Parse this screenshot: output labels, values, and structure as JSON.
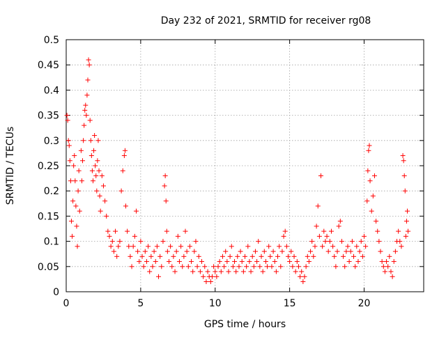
{
  "chart_data": {
    "type": "scatter",
    "title": "Day 232 of 2021, SRMTID for receiver rg08",
    "xlabel": "GPS time / hours",
    "ylabel": "SRMTID / TECUs",
    "xlim": [
      0,
      24
    ],
    "ylim": [
      0,
      0.5
    ],
    "x_ticks": [
      0,
      5,
      10,
      15,
      20
    ],
    "y_ticks": [
      0,
      0.05,
      0.1,
      0.15,
      0.2,
      0.25,
      0.3,
      0.35,
      0.4,
      0.45,
      0.5
    ],
    "x_tick_labels": [
      "0",
      "5",
      "10",
      "15",
      "20"
    ],
    "y_tick_labels": [
      "0",
      "0.05",
      "0.1",
      "0.15",
      "0.2",
      "0.25",
      "0.3",
      "0.35",
      "0.4",
      "0.45",
      "0.5"
    ],
    "grid": true,
    "marker": "plus",
    "color": "#ff0000",
    "series": [
      {
        "name": "SRMTID",
        "points": [
          [
            0.05,
            0.35
          ],
          [
            0.1,
            0.34
          ],
          [
            0.15,
            0.3
          ],
          [
            0.2,
            0.29
          ],
          [
            0.25,
            0.26
          ],
          [
            0.3,
            0.22
          ],
          [
            0.35,
            0.14
          ],
          [
            0.4,
            0.11
          ],
          [
            0.45,
            0.18
          ],
          [
            0.5,
            0.25
          ],
          [
            0.55,
            0.27
          ],
          [
            0.6,
            0.22
          ],
          [
            0.65,
            0.17
          ],
          [
            0.7,
            0.13
          ],
          [
            0.75,
            0.09
          ],
          [
            0.8,
            0.2
          ],
          [
            0.85,
            0.24
          ],
          [
            0.9,
            0.16
          ],
          [
            1.0,
            0.28
          ],
          [
            1.05,
            0.22
          ],
          [
            1.1,
            0.26
          ],
          [
            1.15,
            0.3
          ],
          [
            1.2,
            0.33
          ],
          [
            1.25,
            0.36
          ],
          [
            1.3,
            0.37
          ],
          [
            1.35,
            0.35
          ],
          [
            1.4,
            0.39
          ],
          [
            1.45,
            0.42
          ],
          [
            1.5,
            0.46
          ],
          [
            1.55,
            0.45
          ],
          [
            1.6,
            0.34
          ],
          [
            1.65,
            0.3
          ],
          [
            1.7,
            0.27
          ],
          [
            1.75,
            0.24
          ],
          [
            1.8,
            0.22
          ],
          [
            1.85,
            0.28
          ],
          [
            1.9,
            0.31
          ],
          [
            1.95,
            0.25
          ],
          [
            2.0,
            0.23
          ],
          [
            2.05,
            0.2
          ],
          [
            2.1,
            0.26
          ],
          [
            2.15,
            0.3
          ],
          [
            2.2,
            0.24
          ],
          [
            2.25,
            0.19
          ],
          [
            2.3,
            0.16
          ],
          [
            2.4,
            0.23
          ],
          [
            2.5,
            0.21
          ],
          [
            2.6,
            0.18
          ],
          [
            2.7,
            0.15
          ],
          [
            2.8,
            0.12
          ],
          [
            2.9,
            0.11
          ],
          [
            3.0,
            0.09
          ],
          [
            3.1,
            0.1
          ],
          [
            3.2,
            0.08
          ],
          [
            3.3,
            0.12
          ],
          [
            3.4,
            0.07
          ],
          [
            3.5,
            0.09
          ],
          [
            3.6,
            0.1
          ],
          [
            3.7,
            0.2
          ],
          [
            3.8,
            0.24
          ],
          [
            3.9,
            0.27
          ],
          [
            3.95,
            0.28
          ],
          [
            4.0,
            0.17
          ],
          [
            4.1,
            0.12
          ],
          [
            4.2,
            0.09
          ],
          [
            4.3,
            0.07
          ],
          [
            4.4,
            0.05
          ],
          [
            4.5,
            0.09
          ],
          [
            4.6,
            0.11
          ],
          [
            4.7,
            0.16
          ],
          [
            4.8,
            0.08
          ],
          [
            4.9,
            0.06
          ],
          [
            5.0,
            0.1
          ],
          [
            5.1,
            0.07
          ],
          [
            5.2,
            0.05
          ],
          [
            5.3,
            0.08
          ],
          [
            5.4,
            0.06
          ],
          [
            5.5,
            0.09
          ],
          [
            5.6,
            0.04
          ],
          [
            5.7,
            0.07
          ],
          [
            5.8,
            0.05
          ],
          [
            5.9,
            0.08
          ],
          [
            6.0,
            0.06
          ],
          [
            6.1,
            0.09
          ],
          [
            6.2,
            0.03
          ],
          [
            6.3,
            0.07
          ],
          [
            6.4,
            0.05
          ],
          [
            6.5,
            0.1
          ],
          [
            6.6,
            0.21
          ],
          [
            6.65,
            0.23
          ],
          [
            6.7,
            0.18
          ],
          [
            6.75,
            0.12
          ],
          [
            6.8,
            0.08
          ],
          [
            6.9,
            0.06
          ],
          [
            7.0,
            0.09
          ],
          [
            7.1,
            0.05
          ],
          [
            7.2,
            0.07
          ],
          [
            7.3,
            0.04
          ],
          [
            7.4,
            0.08
          ],
          [
            7.5,
            0.11
          ],
          [
            7.6,
            0.06
          ],
          [
            7.7,
            0.09
          ],
          [
            7.8,
            0.05
          ],
          [
            7.9,
            0.07
          ],
          [
            8.0,
            0.12
          ],
          [
            8.1,
            0.08
          ],
          [
            8.2,
            0.05
          ],
          [
            8.3,
            0.09
          ],
          [
            8.4,
            0.06
          ],
          [
            8.5,
            0.04
          ],
          [
            8.6,
            0.08
          ],
          [
            8.7,
            0.1
          ],
          [
            8.8,
            0.05
          ],
          [
            8.9,
            0.07
          ],
          [
            9.0,
            0.04
          ],
          [
            9.1,
            0.06
          ],
          [
            9.2,
            0.03
          ],
          [
            9.3,
            0.05
          ],
          [
            9.4,
            0.02
          ],
          [
            9.5,
            0.04
          ],
          [
            9.6,
            0.03
          ],
          [
            9.7,
            0.02
          ],
          [
            9.8,
            0.03
          ],
          [
            9.9,
            0.05
          ],
          [
            10.0,
            0.04
          ],
          [
            10.1,
            0.03
          ],
          [
            10.2,
            0.05
          ],
          [
            10.3,
            0.06
          ],
          [
            10.4,
            0.04
          ],
          [
            10.5,
            0.07
          ],
          [
            10.6,
            0.05
          ],
          [
            10.7,
            0.08
          ],
          [
            10.8,
            0.06
          ],
          [
            10.9,
            0.04
          ],
          [
            11.0,
            0.07
          ],
          [
            11.1,
            0.09
          ],
          [
            11.2,
            0.05
          ],
          [
            11.3,
            0.06
          ],
          [
            11.4,
            0.04
          ],
          [
            11.5,
            0.07
          ],
          [
            11.6,
            0.05
          ],
          [
            11.7,
            0.08
          ],
          [
            11.8,
            0.06
          ],
          [
            11.9,
            0.04
          ],
          [
            12.0,
            0.07
          ],
          [
            12.1,
            0.05
          ],
          [
            12.2,
            0.09
          ],
          [
            12.3,
            0.06
          ],
          [
            12.4,
            0.04
          ],
          [
            12.5,
            0.07
          ],
          [
            12.6,
            0.05
          ],
          [
            12.7,
            0.08
          ],
          [
            12.8,
            0.06
          ],
          [
            12.9,
            0.1
          ],
          [
            13.0,
            0.05
          ],
          [
            13.1,
            0.07
          ],
          [
            13.2,
            0.04
          ],
          [
            13.3,
            0.08
          ],
          [
            13.4,
            0.06
          ],
          [
            13.5,
            0.05
          ],
          [
            13.6,
            0.09
          ],
          [
            13.7,
            0.07
          ],
          [
            13.8,
            0.05
          ],
          [
            13.9,
            0.08
          ],
          [
            14.0,
            0.06
          ],
          [
            14.1,
            0.04
          ],
          [
            14.2,
            0.07
          ],
          [
            14.3,
            0.09
          ],
          [
            14.4,
            0.05
          ],
          [
            14.5,
            0.08
          ],
          [
            14.6,
            0.11
          ],
          [
            14.7,
            0.12
          ],
          [
            14.8,
            0.09
          ],
          [
            14.9,
            0.07
          ],
          [
            15.0,
            0.06
          ],
          [
            15.1,
            0.08
          ],
          [
            15.2,
            0.05
          ],
          [
            15.3,
            0.07
          ],
          [
            15.4,
            0.04
          ],
          [
            15.5,
            0.06
          ],
          [
            15.6,
            0.05
          ],
          [
            15.7,
            0.03
          ],
          [
            15.8,
            0.04
          ],
          [
            15.9,
            0.02
          ],
          [
            16.0,
            0.03
          ],
          [
            16.1,
            0.05
          ],
          [
            16.2,
            0.07
          ],
          [
            16.3,
            0.06
          ],
          [
            16.4,
            0.08
          ],
          [
            16.5,
            0.1
          ],
          [
            16.6,
            0.07
          ],
          [
            16.7,
            0.09
          ],
          [
            16.8,
            0.13
          ],
          [
            16.9,
            0.17
          ],
          [
            17.0,
            0.11
          ],
          [
            17.1,
            0.23
          ],
          [
            17.2,
            0.09
          ],
          [
            17.3,
            0.12
          ],
          [
            17.4,
            0.1
          ],
          [
            17.5,
            0.11
          ],
          [
            17.6,
            0.08
          ],
          [
            17.7,
            0.1
          ],
          [
            17.8,
            0.12
          ],
          [
            17.9,
            0.09
          ],
          [
            18.0,
            0.07
          ],
          [
            18.1,
            0.05
          ],
          [
            18.2,
            0.08
          ],
          [
            18.3,
            0.13
          ],
          [
            18.4,
            0.14
          ],
          [
            18.5,
            0.1
          ],
          [
            18.6,
            0.07
          ],
          [
            18.7,
            0.05
          ],
          [
            18.8,
            0.08
          ],
          [
            18.9,
            0.09
          ],
          [
            19.0,
            0.06
          ],
          [
            19.1,
            0.08
          ],
          [
            19.2,
            0.1
          ],
          [
            19.3,
            0.07
          ],
          [
            19.4,
            0.05
          ],
          [
            19.5,
            0.09
          ],
          [
            19.6,
            0.06
          ],
          [
            19.7,
            0.08
          ],
          [
            19.8,
            0.1
          ],
          [
            19.9,
            0.07
          ],
          [
            20.0,
            0.11
          ],
          [
            20.1,
            0.09
          ],
          [
            20.2,
            0.18
          ],
          [
            20.25,
            0.24
          ],
          [
            20.3,
            0.28
          ],
          [
            20.35,
            0.29
          ],
          [
            20.4,
            0.22
          ],
          [
            20.5,
            0.16
          ],
          [
            20.6,
            0.19
          ],
          [
            20.7,
            0.23
          ],
          [
            20.8,
            0.14
          ],
          [
            20.9,
            0.12
          ],
          [
            21.0,
            0.1
          ],
          [
            21.1,
            0.08
          ],
          [
            21.2,
            0.06
          ],
          [
            21.3,
            0.05
          ],
          [
            21.4,
            0.04
          ],
          [
            21.5,
            0.06
          ],
          [
            21.6,
            0.05
          ],
          [
            21.7,
            0.07
          ],
          [
            21.8,
            0.04
          ],
          [
            21.9,
            0.03
          ],
          [
            22.0,
            0.06
          ],
          [
            22.1,
            0.08
          ],
          [
            22.2,
            0.1
          ],
          [
            22.3,
            0.12
          ],
          [
            22.4,
            0.1
          ],
          [
            22.5,
            0.09
          ],
          [
            22.6,
            0.27
          ],
          [
            22.65,
            0.26
          ],
          [
            22.7,
            0.23
          ],
          [
            22.75,
            0.2
          ],
          [
            22.8,
            0.11
          ],
          [
            22.85,
            0.14
          ],
          [
            22.9,
            0.16
          ],
          [
            22.95,
            0.12
          ]
        ]
      }
    ]
  }
}
